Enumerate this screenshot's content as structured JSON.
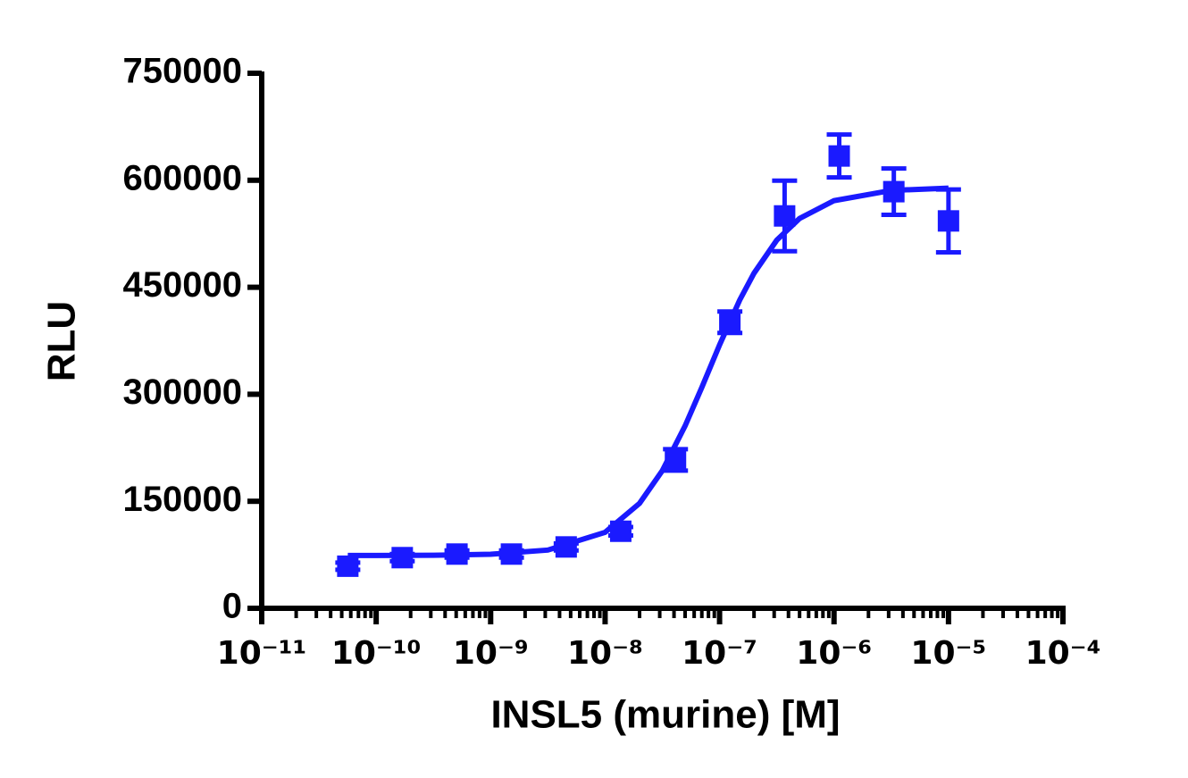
{
  "chart_data": {
    "type": "scatter",
    "x_label": "INSL5 (murine) [M]",
    "y_label": "RLU",
    "x_scale": "log",
    "xlim": [
      1e-11,
      0.0001
    ],
    "xticks": [
      {
        "value": 1e-11,
        "label": "10⁻¹¹"
      },
      {
        "value": 1e-10,
        "label": "10⁻¹⁰"
      },
      {
        "value": 1e-09,
        "label": "10⁻⁹"
      },
      {
        "value": 1e-08,
        "label": "10⁻⁸"
      },
      {
        "value": 1e-07,
        "label": "10⁻⁷"
      },
      {
        "value": 1e-06,
        "label": "10⁻⁶"
      },
      {
        "value": 1e-05,
        "label": "10⁻⁵"
      },
      {
        "value": 0.0001,
        "label": "10⁻⁴"
      }
    ],
    "ylim": [
      0,
      750000
    ],
    "yticks": [
      0,
      150000,
      300000,
      450000,
      600000,
      750000
    ],
    "color": "#1a1aff",
    "x": [
      5.65e-11,
      1.69e-10,
      5.08e-10,
      1.52e-09,
      4.57e-09,
      1.37e-08,
      4.12e-08,
      1.23e-07,
      3.7e-07,
      1.11e-06,
      3.33e-06,
      1e-05
    ],
    "values": [
      59000,
      71000,
      76000,
      76000,
      86000,
      108000,
      208000,
      401000,
      550000,
      634000,
      584000,
      543000
    ],
    "errors": [
      5000,
      5000,
      5000,
      5000,
      5000,
      6000,
      15000,
      15000,
      49500,
      30000,
      32500,
      44000
    ],
    "fit": {
      "x": [
        5.65e-11,
        1e-10,
        3.16e-10,
        1e-09,
        3.16e-09,
        1e-08,
        2e-08,
        3.16e-08,
        5e-08,
        7e-08,
        1e-07,
        1.5e-07,
        2e-07,
        3.16e-07,
        5e-07,
        1e-06,
        3.16e-06,
        1e-05
      ],
      "values": [
        74000,
        74100,
        74400,
        75700,
        81600,
        106500,
        147100,
        192900,
        255700,
        309600,
        369200,
        432100,
        469700,
        516000,
        546400,
        571400,
        585700,
        589000
      ]
    }
  }
}
